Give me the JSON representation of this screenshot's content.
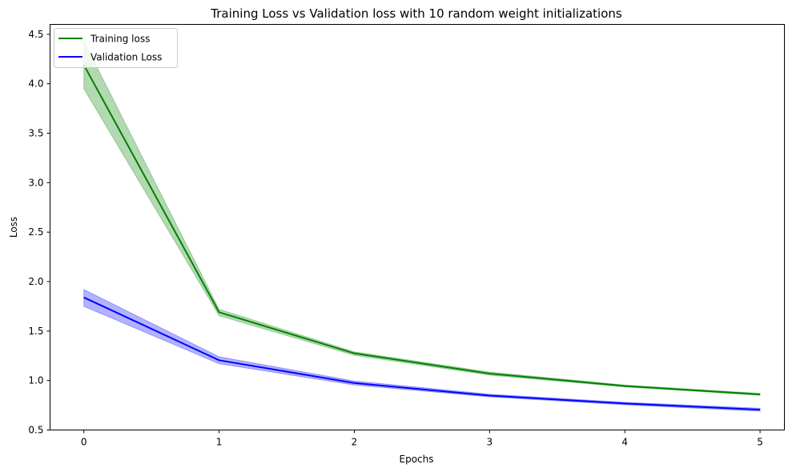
{
  "chart_data": {
    "type": "line",
    "title": "Training Loss vs Validation loss with 10 random weight initializations",
    "xlabel": "Epochs",
    "ylabel": "Loss",
    "x": [
      0,
      1,
      2,
      3,
      4,
      5
    ],
    "xlim": [
      -0.25,
      5.18
    ],
    "ylim": [
      0.5,
      4.6
    ],
    "xticks": [
      0,
      1,
      2,
      3,
      4,
      5
    ],
    "yticks": [
      0.5,
      1.0,
      1.5,
      2.0,
      2.5,
      3.0,
      3.5,
      4.0,
      4.5
    ],
    "xtick_labels": [
      "0",
      "1",
      "2",
      "3",
      "4",
      "5"
    ],
    "ytick_labels": [
      "0.5",
      "1.0",
      "1.5",
      "2.0",
      "2.5",
      "3.0",
      "3.5",
      "4.0",
      "4.5"
    ],
    "grid": false,
    "legend_position": "upper-left",
    "series": [
      {
        "name": "Training loss",
        "color": "#008000",
        "values": [
          4.19,
          1.69,
          1.275,
          1.07,
          0.945,
          0.86
        ],
        "lower": [
          3.95,
          1.655,
          1.255,
          1.055,
          0.935,
          0.85
        ],
        "upper": [
          4.43,
          1.72,
          1.29,
          1.085,
          0.955,
          0.87
        ]
      },
      {
        "name": "Validation Loss",
        "color": "#0000ff",
        "values": [
          1.84,
          1.205,
          0.975,
          0.848,
          0.768,
          0.705
        ],
        "lower": [
          1.75,
          1.17,
          0.955,
          0.835,
          0.755,
          0.69
        ],
        "upper": [
          1.92,
          1.24,
          0.995,
          0.862,
          0.78,
          0.72
        ]
      }
    ]
  }
}
